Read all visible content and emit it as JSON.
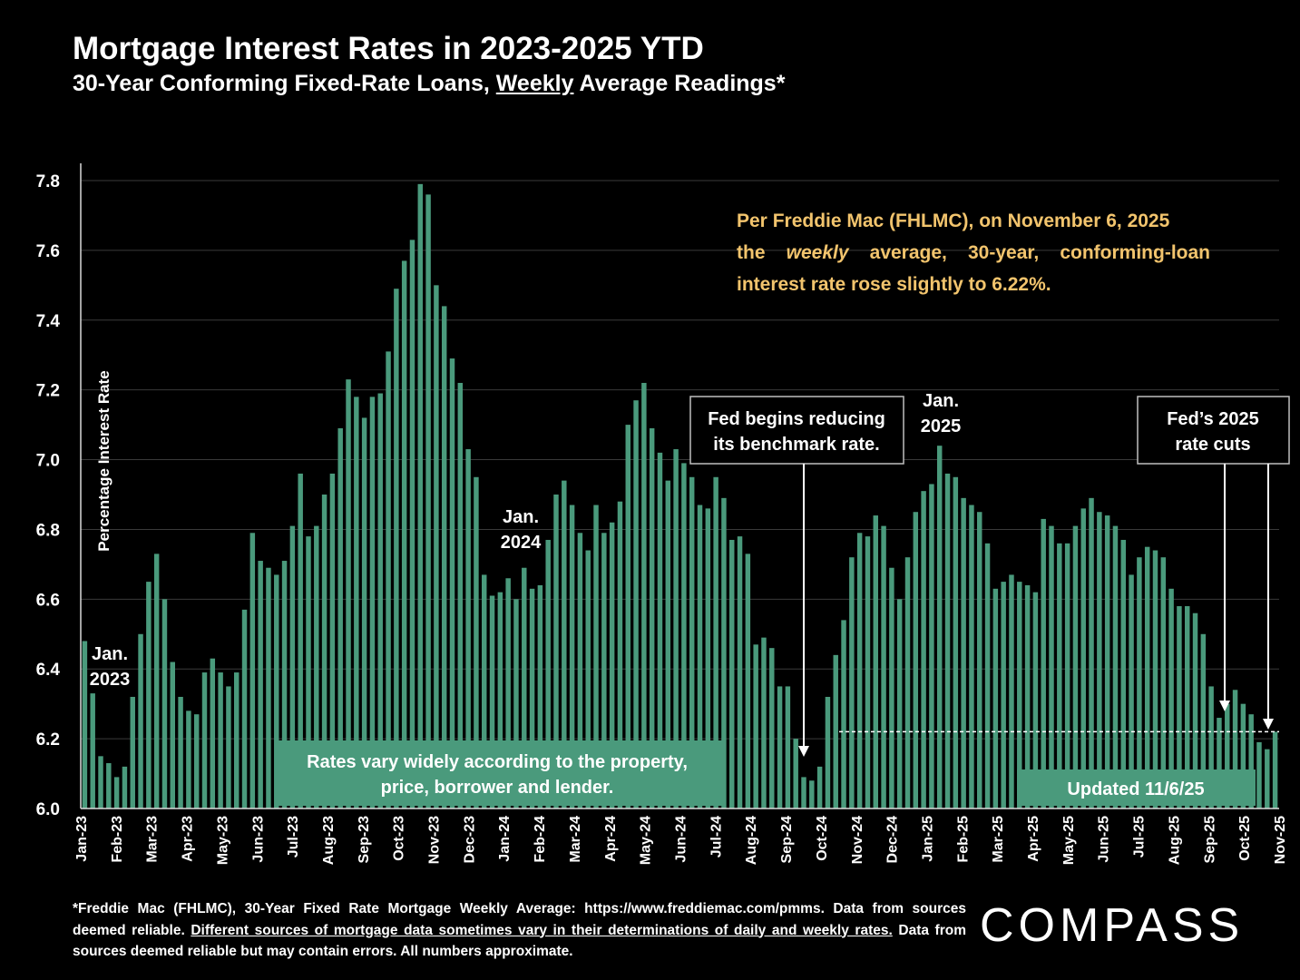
{
  "header": {
    "title": "Mortgage Interest Rates in 2023-2025 YTD",
    "subtitle_pre": "30-Year Conforming Fixed-Rate Loans, ",
    "subtitle_u": "Weekly",
    "subtitle_post": " Average Readings*"
  },
  "note": {
    "line1": "Per Freddie Mac (FHLMC), on November 6, 2025",
    "pre": "the ",
    "em": "weekly",
    "post": " average, 30-year, conforming-loan interest rate rose slightly to 6.22%."
  },
  "footer": {
    "part1": "*Freddie Mac (FHLMC), 30-Year Fixed Rate Mortgage Weekly Average:  https://www.freddiemac.com/pmms. Data from sources deemed reliable. ",
    "part2_underlined": "Different sources of mortgage data sometimes vary in their determinations of daily and weekly rates.",
    "part3": " Data from sources deemed reliable but may contain errors. All numbers approximate."
  },
  "logo": "COMPASS",
  "colors": {
    "bar": "#4a9a7c",
    "background": "#000000",
    "note_text": "#f2c46d",
    "grid": "#3a3a3a"
  },
  "chart_data": {
    "type": "bar",
    "ylabel": "Percentage Interest  Rate",
    "ylim": [
      6.0,
      7.8
    ],
    "yticks": [
      "6.0",
      "6.2",
      "6.4",
      "6.6",
      "6.8",
      "7.0",
      "7.2",
      "7.4",
      "7.6",
      "7.8"
    ],
    "grid": true,
    "x_tick_labels": [
      "Jan-23",
      "Feb-23",
      "Mar-23",
      "Apr-23",
      "May-23",
      "Jun-23",
      "Jul-23",
      "Aug-23",
      "Sep-23",
      "Oct-23",
      "Nov-23",
      "Dec-23",
      "Jan-24",
      "Feb-24",
      "Mar-24",
      "Apr-24",
      "May-24",
      "Jun-24",
      "Jul-24",
      "Aug-24",
      "Sep-24",
      "Oct-24",
      "Nov-24",
      "Dec-24",
      "Jan-25",
      "Feb-25",
      "Mar-25",
      "Apr-25",
      "May-25",
      "Jun-25",
      "Jul-25",
      "Aug-25",
      "Sep-25",
      "Oct-25",
      "Nov-25"
    ],
    "values": [
      6.48,
      6.33,
      6.15,
      6.13,
      6.09,
      6.12,
      6.32,
      6.5,
      6.65,
      6.73,
      6.6,
      6.42,
      6.32,
      6.28,
      6.27,
      6.39,
      6.43,
      6.39,
      6.35,
      6.39,
      6.57,
      6.79,
      6.71,
      6.69,
      6.67,
      6.71,
      6.81,
      6.96,
      6.78,
      6.81,
      6.9,
      6.96,
      7.09,
      7.23,
      7.18,
      7.12,
      7.18,
      7.19,
      7.31,
      7.49,
      7.57,
      7.63,
      7.79,
      7.76,
      7.5,
      7.44,
      7.29,
      7.22,
      7.03,
      6.95,
      6.67,
      6.61,
      6.62,
      6.66,
      6.6,
      6.69,
      6.63,
      6.64,
      6.77,
      6.9,
      6.94,
      6.87,
      6.79,
      6.74,
      6.87,
      6.79,
      6.82,
      6.88,
      7.1,
      7.17,
      7.22,
      7.09,
      7.02,
      6.94,
      7.03,
      6.99,
      6.95,
      6.87,
      6.86,
      6.95,
      6.89,
      6.77,
      6.78,
      6.73,
      6.47,
      6.49,
      6.46,
      6.35,
      6.35,
      6.2,
      6.09,
      6.08,
      6.12,
      6.32,
      6.44,
      6.54,
      6.72,
      6.79,
      6.78,
      6.84,
      6.81,
      6.69,
      6.6,
      6.72,
      6.85,
      6.91,
      6.93,
      7.04,
      6.96,
      6.95,
      6.89,
      6.87,
      6.85,
      6.76,
      6.63,
      6.65,
      6.67,
      6.65,
      6.64,
      6.62,
      6.83,
      6.81,
      6.76,
      6.76,
      6.81,
      6.86,
      6.89,
      6.85,
      6.84,
      6.81,
      6.77,
      6.67,
      6.72,
      6.75,
      6.74,
      6.72,
      6.63,
      6.58,
      6.58,
      6.56,
      6.5,
      6.35,
      6.26,
      6.3,
      6.34,
      6.3,
      6.27,
      6.19,
      6.17,
      6.22
    ],
    "annotations": {
      "jan2023": [
        "Jan.",
        "2023"
      ],
      "jan2024": [
        "Jan.",
        "2024"
      ],
      "jan2025": [
        "Jan.",
        "2025"
      ],
      "fed_begins": [
        "Fed begins reducing",
        "its benchmark rate."
      ],
      "fed_cuts": [
        "Fed’s 2025",
        "rate cuts"
      ],
      "vary": [
        "Rates vary widely according to the property,",
        "price, borrower and lender."
      ],
      "updated": "Updated 11/6/25"
    }
  }
}
